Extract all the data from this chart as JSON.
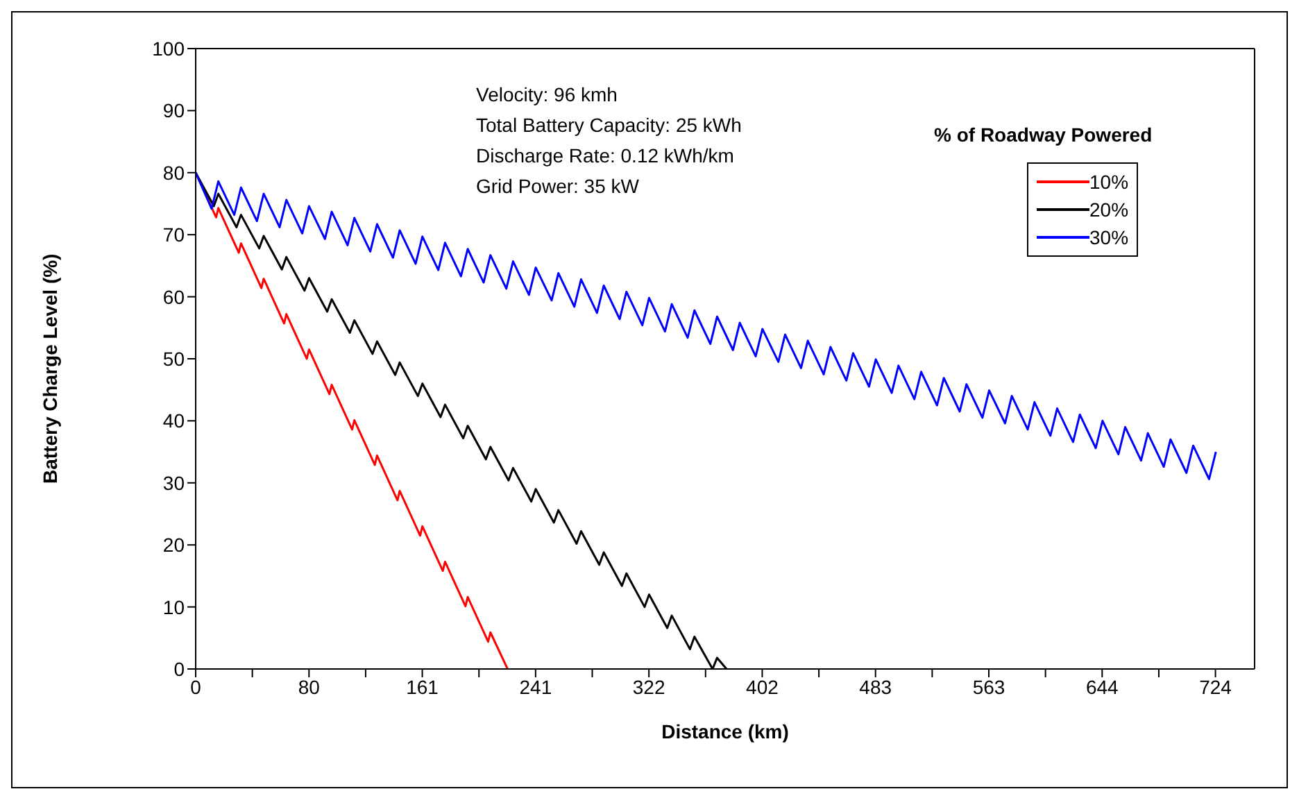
{
  "chart_data": {
    "type": "line",
    "xlabel": "Distance (km)",
    "ylabel": "Battery Charge Level (%)",
    "legend_title": "% of Roadway Powered",
    "legend": "top right",
    "marker": "none",
    "line_style": "solid",
    "annotations": [
      "Velocity: 96 kmh",
      "Total Battery Capacity: 25 kWh",
      "Discharge Rate: 0.12 kWh/km",
      "Grid Power: 35 kW"
    ],
    "xlim": [
      0,
      752
    ],
    "ylim": [
      0,
      100
    ],
    "yticks": [
      0,
      10,
      20,
      30,
      40,
      50,
      60,
      70,
      80,
      90,
      100
    ],
    "xticks": [
      0,
      {
        "value": 40.23,
        "label": null
      },
      {
        "value": 80.47,
        "label": "80"
      },
      {
        "value": 120.7,
        "label": null
      },
      {
        "value": 160.93,
        "label": "161"
      },
      {
        "value": 201.17,
        "label": null
      },
      {
        "value": 241.4,
        "label": "241"
      },
      {
        "value": 281.64,
        "label": null
      },
      {
        "value": 321.87,
        "label": "322"
      },
      {
        "value": 362.1,
        "label": null
      },
      {
        "value": 402.34,
        "label": "402"
      },
      {
        "value": 442.57,
        "label": null
      },
      {
        "value": 482.8,
        "label": "483"
      },
      {
        "value": 523.04,
        "label": null
      },
      {
        "value": 563.27,
        "label": "563"
      },
      {
        "value": 603.5,
        "label": null
      },
      {
        "value": 643.74,
        "label": "644"
      },
      {
        "value": 683.97,
        "label": null
      },
      {
        "value": 724.2,
        "label": "724"
      }
    ],
    "series": [
      {
        "name": "10%",
        "color": "#ff0000",
        "x": [
          0,
          14.5,
          16.1,
          30.6,
          32.2,
          46.7,
          48.3,
          62.8,
          64.4,
          78.9,
          80.5,
          95,
          96.6,
          111.1,
          112.7,
          127.2,
          128.8,
          143.3,
          144.9,
          159.4,
          161,
          175.5,
          177.1,
          191.6,
          193.2,
          207.7,
          209.3,
          221.5
        ],
        "values": [
          80,
          72.8,
          74.3,
          67.1,
          68.6,
          61.4,
          62.9,
          55.7,
          57.2,
          50,
          51.5,
          44.3,
          45.8,
          38.6,
          40.1,
          32.9,
          34.4,
          27.2,
          28.7,
          21.5,
          23,
          15.8,
          17.3,
          10.1,
          11.6,
          4.4,
          5.9,
          0
        ]
      },
      {
        "name": "20%",
        "color": "#000000",
        "x": [
          0,
          12.9,
          16.1,
          29,
          32.2,
          45.1,
          48.3,
          61.2,
          64.4,
          77.3,
          80.5,
          93.4,
          96.6,
          109.5,
          112.7,
          125.6,
          128.8,
          141.7,
          144.9,
          157.8,
          161,
          173.9,
          177.1,
          190,
          193.2,
          206.1,
          209.3,
          222.2,
          225.4,
          238.3,
          241.5,
          254.4,
          257.6,
          270.5,
          273.7,
          286.6,
          289.8,
          302.7,
          305.9,
          318.8,
          322,
          334.9,
          338.1,
          351,
          354.2,
          367.1,
          370.3,
          377
        ],
        "values": [
          80,
          74.6,
          76.6,
          71.2,
          73.2,
          67.8,
          69.8,
          64.4,
          66.4,
          61,
          63,
          57.6,
          59.6,
          54.2,
          56.2,
          50.8,
          52.8,
          47.4,
          49.4,
          44,
          46,
          40.6,
          42.6,
          37.2,
          39.2,
          33.8,
          35.8,
          30.4,
          32.4,
          27,
          29,
          23.6,
          25.6,
          20.2,
          22.2,
          16.8,
          18.8,
          13.4,
          15.4,
          10,
          12,
          6.6,
          8.6,
          3.2,
          5.2,
          0,
          1.8,
          0
        ]
      },
      {
        "name": "30%",
        "color": "#0000ff",
        "x": [
          0,
          11.3,
          16.1,
          27.4,
          32.2,
          43.5,
          48.3,
          59.6,
          64.4,
          75.7,
          80.5,
          91.8,
          96.6,
          107.9,
          112.7,
          124,
          128.8,
          140.1,
          144.9,
          156.2,
          161,
          172.3,
          177.1,
          188.4,
          193.2,
          204.5,
          209.3,
          220.6,
          225.4,
          236.7,
          241.5,
          252.8,
          257.6,
          268.9,
          273.7,
          285,
          289.8,
          301.1,
          305.9,
          317.2,
          322,
          333.3,
          338.1,
          349.4,
          354.2,
          365.5,
          370.3,
          381.6,
          386.4,
          397.7,
          402.5,
          413.8,
          418.6,
          429.9,
          434.7,
          446,
          450.8,
          462.1,
          466.9,
          478.2,
          483,
          494.3,
          499.1,
          510.4,
          515.2,
          526.5,
          531.3,
          542.6,
          547.4,
          558.7,
          563.5,
          574.8,
          579.6,
          590.9,
          595.7,
          607,
          611.8,
          623.1,
          627.9,
          639.2,
          644,
          655.3,
          660.1,
          671.4,
          676.2,
          687.5,
          692.3,
          703.6,
          708.4,
          719.7,
          724.5
        ],
        "values": [
          80,
          74.2,
          78.6,
          73.2,
          77.6,
          72.2,
          76.6,
          71.2,
          75.6,
          70.2,
          74.6,
          69.3,
          73.7,
          68.3,
          72.7,
          67.3,
          71.7,
          66.3,
          70.7,
          65.3,
          69.7,
          64.3,
          68.7,
          63.3,
          67.7,
          62.3,
          66.7,
          61.3,
          65.7,
          60.3,
          64.7,
          59.4,
          63.8,
          58.4,
          62.8,
          57.4,
          61.8,
          56.4,
          60.8,
          55.4,
          59.8,
          54.4,
          58.8,
          53.4,
          57.8,
          52.4,
          56.8,
          51.4,
          55.8,
          50.4,
          54.8,
          49.5,
          53.9,
          48.5,
          52.9,
          47.5,
          51.9,
          46.5,
          50.9,
          45.5,
          49.9,
          44.5,
          48.9,
          43.5,
          47.9,
          42.5,
          46.9,
          41.5,
          45.9,
          40.5,
          44.9,
          39.6,
          44,
          38.6,
          43,
          37.6,
          42,
          36.6,
          41,
          35.6,
          40,
          34.6,
          39,
          33.6,
          38,
          32.6,
          37,
          31.6,
          36,
          30.6,
          35
        ]
      }
    ]
  }
}
